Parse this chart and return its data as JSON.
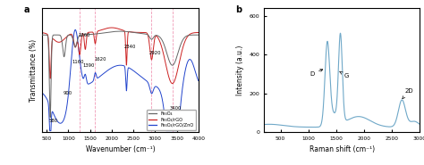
{
  "panel_a": {
    "title": "a",
    "xlabel": "Wavenumber (cm⁻¹)",
    "ylabel": "Transmittance (%)",
    "xlim": [
      400,
      4000
    ],
    "legend": [
      "Fe₃O₄",
      "Fe₃O₄/rGO",
      "Fe₃O₄/rGO/ZnO"
    ],
    "line_colors": [
      "#666666",
      "#cc2222",
      "#2244cc"
    ],
    "vlines": [
      1260,
      1620,
      2920,
      3400
    ],
    "vline_color": "#ee88aa",
    "vline_style": "--",
    "ann_labels": [
      "1160",
      "1260",
      "1390",
      "1620",
      "2340",
      "2920",
      "3400",
      "900",
      "580"
    ]
  },
  "panel_b": {
    "title": "b",
    "xlabel": "Raman shift (cm⁻¹)",
    "ylabel": "Intensity (a.u.)",
    "xlim": [
      200,
      3000
    ],
    "ylim": [
      0,
      640
    ],
    "yticks": [
      0,
      200,
      400,
      600
    ],
    "line_color": "#6fa8c8"
  },
  "fig_bg": "#ffffff"
}
